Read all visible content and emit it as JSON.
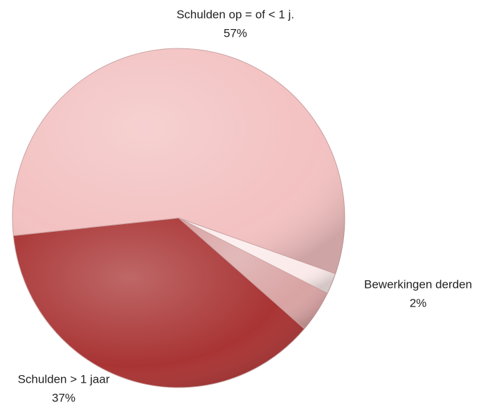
{
  "chart_data": {
    "type": "pie",
    "categories": [
      "Schulden op = of < 1 j.",
      "Bewerkingen derden",
      null,
      "Schulden > 1 jaar"
    ],
    "values": [
      57,
      2,
      4,
      37
    ],
    "value_labels": [
      "57%",
      "2%",
      null,
      "37%"
    ],
    "colors": [
      "#f3c1c1",
      "#fbeaea",
      "#d9a3a3",
      "#a93434"
    ]
  }
}
